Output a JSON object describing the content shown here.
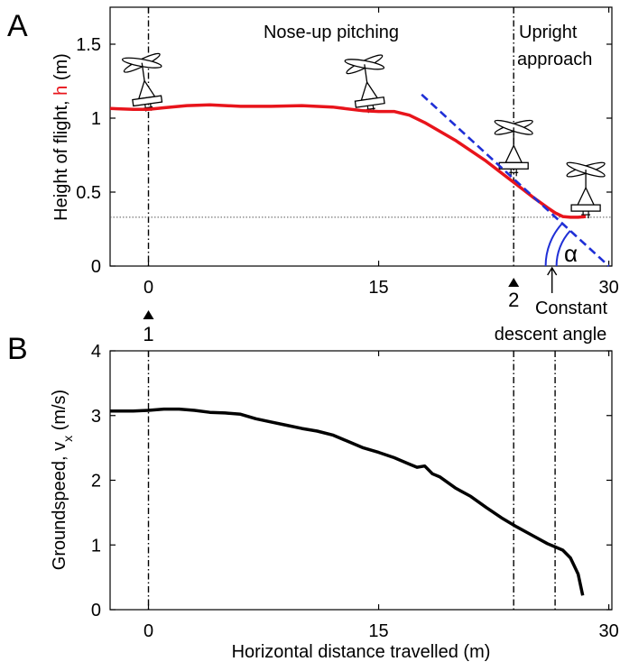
{
  "figure": {
    "panel_a": {
      "letter": "A",
      "ylabel_prefix": "Height of flight, ",
      "ylabel_var": "h",
      "ylabel_unit": " (m)",
      "phase_1": "Nose-up pitching",
      "phase_2_line1": "Upright",
      "phase_2_line2": "approach",
      "marker_1": "1",
      "marker_2": "2",
      "angle_symbol": "α",
      "angle_label_line1": "Constant",
      "angle_label_line2": "descent angle"
    },
    "panel_b": {
      "letter": "B",
      "ylabel_prefix": "Groundspeed, v",
      "ylabel_sub": "x",
      "ylabel_unit": " (m/s)",
      "xlabel": "Horizontal distance travelled (m)"
    }
  },
  "colors": {
    "height_line": "#e8141b",
    "fit_line": "#1f2fd6",
    "speed_line": "#000000",
    "h_letter": "#e8141b"
  },
  "chart_data": [
    {
      "type": "line",
      "panel": "A",
      "title": "",
      "xlabel": "",
      "ylabel": "Height of flight, h (m)",
      "xlim": [
        -2.5,
        30.2
      ],
      "ylim": [
        0,
        1.75
      ],
      "xticks": [
        0,
        15,
        30
      ],
      "yticks": [
        0,
        0.5,
        1,
        1.5
      ],
      "ytick_labels": [
        "0",
        "0.5",
        "1",
        "1.5"
      ],
      "series": [
        {
          "role": "height",
          "x": [
            -2.5,
            -1.0,
            0.0,
            1.0,
            2.5,
            4.0,
            6.0,
            8.0,
            10.0,
            12.0,
            14.0,
            15.0,
            16.0,
            17.0,
            18.0,
            19.0,
            20.0,
            21.0,
            22.0,
            23.0,
            24.0,
            25.0,
            26.0,
            26.5,
            27.0,
            27.5,
            28.0,
            28.5
          ],
          "y": [
            1.065,
            1.06,
            1.06,
            1.07,
            1.085,
            1.09,
            1.08,
            1.08,
            1.085,
            1.075,
            1.05,
            1.045,
            1.045,
            1.02,
            0.97,
            0.91,
            0.85,
            0.78,
            0.71,
            0.63,
            0.55,
            0.47,
            0.395,
            0.36,
            0.335,
            0.33,
            0.33,
            0.335
          ]
        },
        {
          "role": "constant-descent-fit",
          "style": "dashed",
          "x": [
            17.8,
            30.0
          ],
          "y": [
            1.16,
            0.0
          ]
        }
      ],
      "reference_lines": [
        {
          "orientation": "vertical",
          "x": 0.0,
          "style": "dash-dot"
        },
        {
          "orientation": "vertical",
          "x": 23.8,
          "style": "dash-dot"
        },
        {
          "orientation": "horizontal",
          "y": 0.33,
          "style": "dotted"
        }
      ],
      "markers": [
        {
          "x": 0.0,
          "label": "1"
        },
        {
          "x": 23.8,
          "label": "2"
        }
      ],
      "annotations": [
        {
          "x": 26.3,
          "label": "Constant descent angle"
        }
      ],
      "glider_icons": [
        {
          "x": 0.0,
          "y": 1.06,
          "tilt_deg": -8
        },
        {
          "x": 14.5,
          "y": 1.05,
          "tilt_deg": -8
        },
        {
          "x": 23.8,
          "y": 0.62,
          "tilt_deg": 0
        },
        {
          "x": 28.5,
          "y": 0.335,
          "tilt_deg": 0
        }
      ]
    },
    {
      "type": "line",
      "panel": "B",
      "title": "",
      "xlabel": "Horizontal distance travelled (m)",
      "ylabel": "Groundspeed, vx (m/s)",
      "xlim": [
        -2.5,
        30.2
      ],
      "ylim": [
        0,
        4
      ],
      "xticks": [
        0,
        15,
        30
      ],
      "yticks": [
        0,
        1,
        2,
        3,
        4
      ],
      "series": [
        {
          "role": "groundspeed",
          "x": [
            -2.5,
            -1.0,
            0.0,
            1.0,
            2.0,
            3.0,
            4.0,
            5.0,
            6.0,
            7.0,
            8.0,
            9.0,
            10.0,
            11.0,
            12.0,
            13.0,
            14.0,
            15.0,
            16.0,
            17.0,
            17.5,
            18.0,
            18.5,
            19.0,
            20.0,
            21.0,
            22.0,
            23.0,
            24.0,
            25.0,
            26.0,
            26.5,
            27.0,
            27.5,
            28.0,
            28.3
          ],
          "y": [
            3.07,
            3.07,
            3.08,
            3.1,
            3.1,
            3.08,
            3.05,
            3.04,
            3.02,
            2.95,
            2.9,
            2.85,
            2.8,
            2.76,
            2.7,
            2.6,
            2.5,
            2.43,
            2.35,
            2.25,
            2.2,
            2.22,
            2.1,
            2.05,
            1.88,
            1.75,
            1.58,
            1.42,
            1.28,
            1.15,
            1.02,
            0.97,
            0.92,
            0.8,
            0.55,
            0.22
          ]
        }
      ],
      "reference_lines": [
        {
          "orientation": "vertical",
          "x": 0.0,
          "style": "dash-dot"
        },
        {
          "orientation": "vertical",
          "x": 23.8,
          "style": "dash-dot"
        },
        {
          "orientation": "vertical",
          "x": 26.5,
          "style": "dash-dot"
        }
      ]
    }
  ]
}
